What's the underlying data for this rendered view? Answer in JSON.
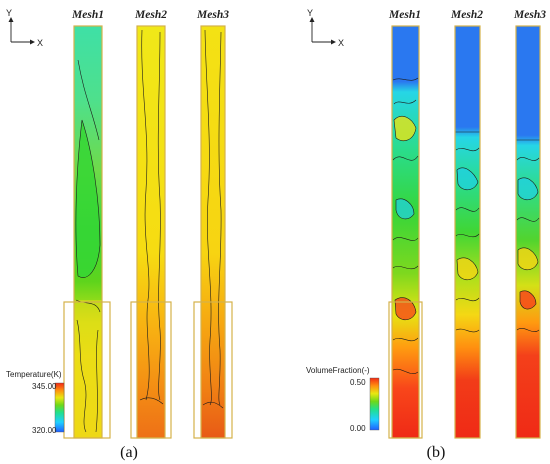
{
  "panel_a": {
    "axis_y": "Y",
    "axis_x": "X",
    "columns": [
      "Mesh1",
      "Mesh2",
      "Mesh3"
    ],
    "colorbar": {
      "title": "Temperature(K)",
      "max": "345.00",
      "min": "320.00"
    },
    "caption": "(a)"
  },
  "panel_b": {
    "axis_y": "Y",
    "axis_x": "X",
    "columns": [
      "Mesh1",
      "Mesh2",
      "Mesh3"
    ],
    "colorbar": {
      "title": "VolumeFraction(-)",
      "max": "0.50",
      "min": "0.00"
    },
    "caption": "(b)"
  },
  "colors": {
    "rainbow": [
      "#1f5fff",
      "#1fd0ff",
      "#22e08a",
      "#5ed418",
      "#d8e812",
      "#ffd000",
      "#ff8a10",
      "#f22a14"
    ],
    "frame": "#d4b24a"
  }
}
